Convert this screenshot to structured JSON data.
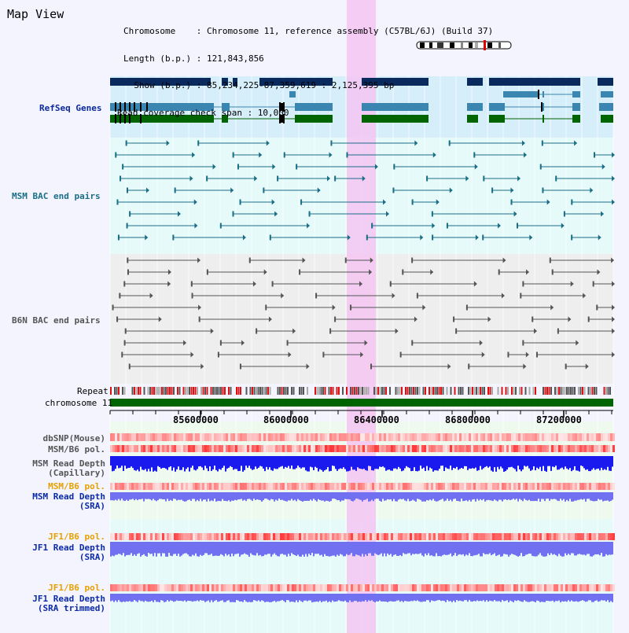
{
  "title": "Map View",
  "info": {
    "chromosome_line": "Chromosome    : Chromosome 11, reference assembly (C57BL/6J) (Build 37)",
    "length_line": "Length (b.p.) : 121,843,856",
    "show_line": "  Show (b.p.) : 85,234,225-87,359,619 : 2,125,395 bp",
    "coverage_line": "Read coverage check span : 10,000"
  },
  "tracks": {
    "refseq": "RefSeq Genes",
    "msm_bac": "MSM BAC end pairs",
    "b6n_bac": "B6N BAC end pairs",
    "repeat": "Repeat",
    "chromosome": "chromosome 11",
    "dbsnp": "dbSNP(Mouse)",
    "msm_b6_pol_1": "MSM/B6 pol.",
    "msm_read_depth_cap_1": "MSM Read Depth",
    "msm_read_depth_cap_2": "(Capillary)",
    "msm_b6_pol_2": "MSM/B6 pol.",
    "msm_read_depth_sra_1": "MSM Read Depth",
    "msm_read_depth_sra_2": "(SRA)",
    "jf1_b6_pol_1": "JF1/B6 pol.",
    "jf1_read_depth_sra_1": "JF1 Read Depth",
    "jf1_read_depth_sra_2": "(SRA)",
    "jf1_b6_pol_2": "JF1/B6 pol.",
    "jf1_read_depth_trim_1": "JF1 Read Depth",
    "jf1_read_depth_trim_2": "(SRA trimmed)"
  },
  "axis": {
    "ticks": [
      "85600000",
      "86000000",
      "86400000",
      "86800000",
      "87200000"
    ]
  },
  "colors": {
    "highlight": "#f5c6f2",
    "refseq_dark": "#0a2a5e",
    "refseq_mid": "#3a86b0",
    "refseq_green": "#006400",
    "msm_bac": "#1a6e86",
    "b6n_bac": "#555555",
    "chromosome": "#006400",
    "depth_blue": "#1a1aee",
    "depth_light": "#7070f0"
  }
}
